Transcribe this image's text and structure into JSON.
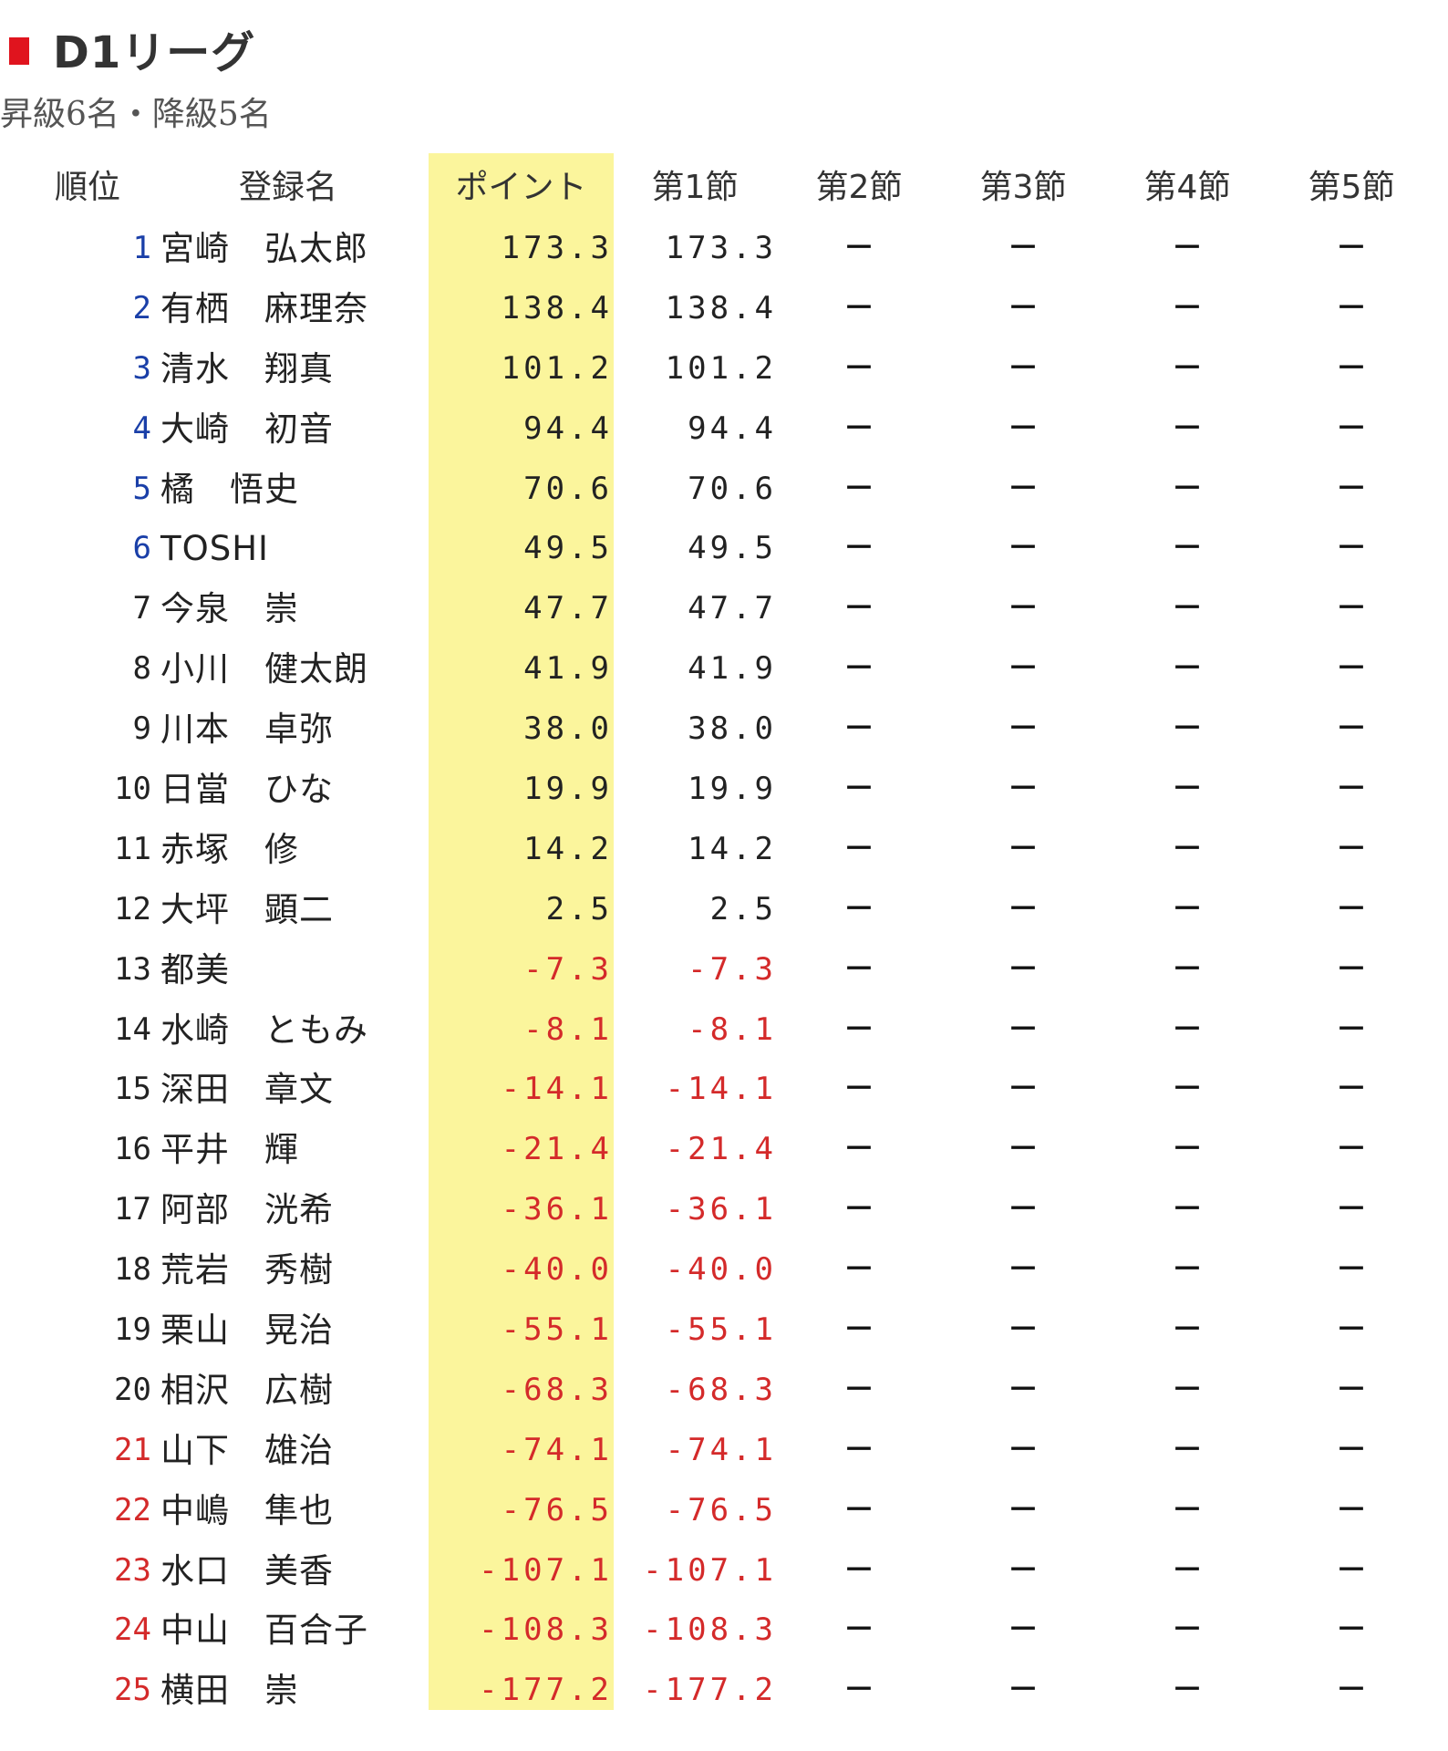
{
  "header": {
    "title": "D1リーグ",
    "subtitle": "昇級6名・降級5名"
  },
  "columns": {
    "rank": "順位",
    "name": "登録名",
    "points": "ポイント",
    "rounds": [
      "第1節",
      "第2節",
      "第3節",
      "第4節",
      "第5節"
    ]
  },
  "colors": {
    "title_marker": "#e0141e",
    "points_highlight": "#fbf59c",
    "promotion_rank": "#1a3fa8",
    "relegation_rank": "#d42a2a",
    "negative_value": "#d42a2a"
  },
  "rows": [
    {
      "rank": "1",
      "name": "宮崎　弘太郎",
      "points": "173.3",
      "round1": "173.3",
      "status": "promotion"
    },
    {
      "rank": "2",
      "name": "有栖　麻理奈",
      "points": "138.4",
      "round1": "138.4",
      "status": "promotion"
    },
    {
      "rank": "3",
      "name": "清水　翔真",
      "points": "101.2",
      "round1": "101.2",
      "status": "promotion"
    },
    {
      "rank": "4",
      "name": "大崎　初音",
      "points": "94.4",
      "round1": "94.4",
      "status": "promotion"
    },
    {
      "rank": "5",
      "name": "橘　悟史",
      "points": "70.6",
      "round1": "70.6",
      "status": "promotion"
    },
    {
      "rank": "6",
      "name": "TOSHI",
      "points": "49.5",
      "round1": "49.5",
      "status": "promotion"
    },
    {
      "rank": "7",
      "name": "今泉　崇",
      "points": "47.7",
      "round1": "47.7",
      "status": "none"
    },
    {
      "rank": "8",
      "name": "小川　健太朗",
      "points": "41.9",
      "round1": "41.9",
      "status": "none"
    },
    {
      "rank": "9",
      "name": "川本　卓弥",
      "points": "38.0",
      "round1": "38.0",
      "status": "none"
    },
    {
      "rank": "10",
      "name": "日當　ひな",
      "points": "19.9",
      "round1": "19.9",
      "status": "none"
    },
    {
      "rank": "11",
      "name": "赤塚　修",
      "points": "14.2",
      "round1": "14.2",
      "status": "none"
    },
    {
      "rank": "12",
      "name": "大坪　顕二",
      "points": "2.5",
      "round1": "2.5",
      "status": "none"
    },
    {
      "rank": "13",
      "name": "都美",
      "points": "-7.3",
      "round1": "-7.3",
      "status": "none"
    },
    {
      "rank": "14",
      "name": "水崎　ともみ",
      "points": "-8.1",
      "round1": "-8.1",
      "status": "none"
    },
    {
      "rank": "15",
      "name": "深田　章文",
      "points": "-14.1",
      "round1": "-14.1",
      "status": "none"
    },
    {
      "rank": "16",
      "name": "平井　輝",
      "points": "-21.4",
      "round1": "-21.4",
      "status": "none"
    },
    {
      "rank": "17",
      "name": "阿部　洸希",
      "points": "-36.1",
      "round1": "-36.1",
      "status": "none"
    },
    {
      "rank": "18",
      "name": "荒岩　秀樹",
      "points": "-40.0",
      "round1": "-40.0",
      "status": "none"
    },
    {
      "rank": "19",
      "name": "栗山　晃治",
      "points": "-55.1",
      "round1": "-55.1",
      "status": "none"
    },
    {
      "rank": "20",
      "name": "相沢　広樹",
      "points": "-68.3",
      "round1": "-68.3",
      "status": "none"
    },
    {
      "rank": "21",
      "name": "山下　雄治",
      "points": "-74.1",
      "round1": "-74.1",
      "status": "relegation"
    },
    {
      "rank": "22",
      "name": "中嶋　隼也",
      "points": "-76.5",
      "round1": "-76.5",
      "status": "relegation"
    },
    {
      "rank": "23",
      "name": "水口　美香",
      "points": "-107.1",
      "round1": "-107.1",
      "status": "relegation"
    },
    {
      "rank": "24",
      "name": "中山　百合子",
      "points": "-108.3",
      "round1": "-108.3",
      "status": "relegation"
    },
    {
      "rank": "25",
      "name": "横田　崇",
      "points": "-177.2",
      "round1": "-177.2",
      "status": "relegation"
    }
  ],
  "empty_round_value": "－"
}
